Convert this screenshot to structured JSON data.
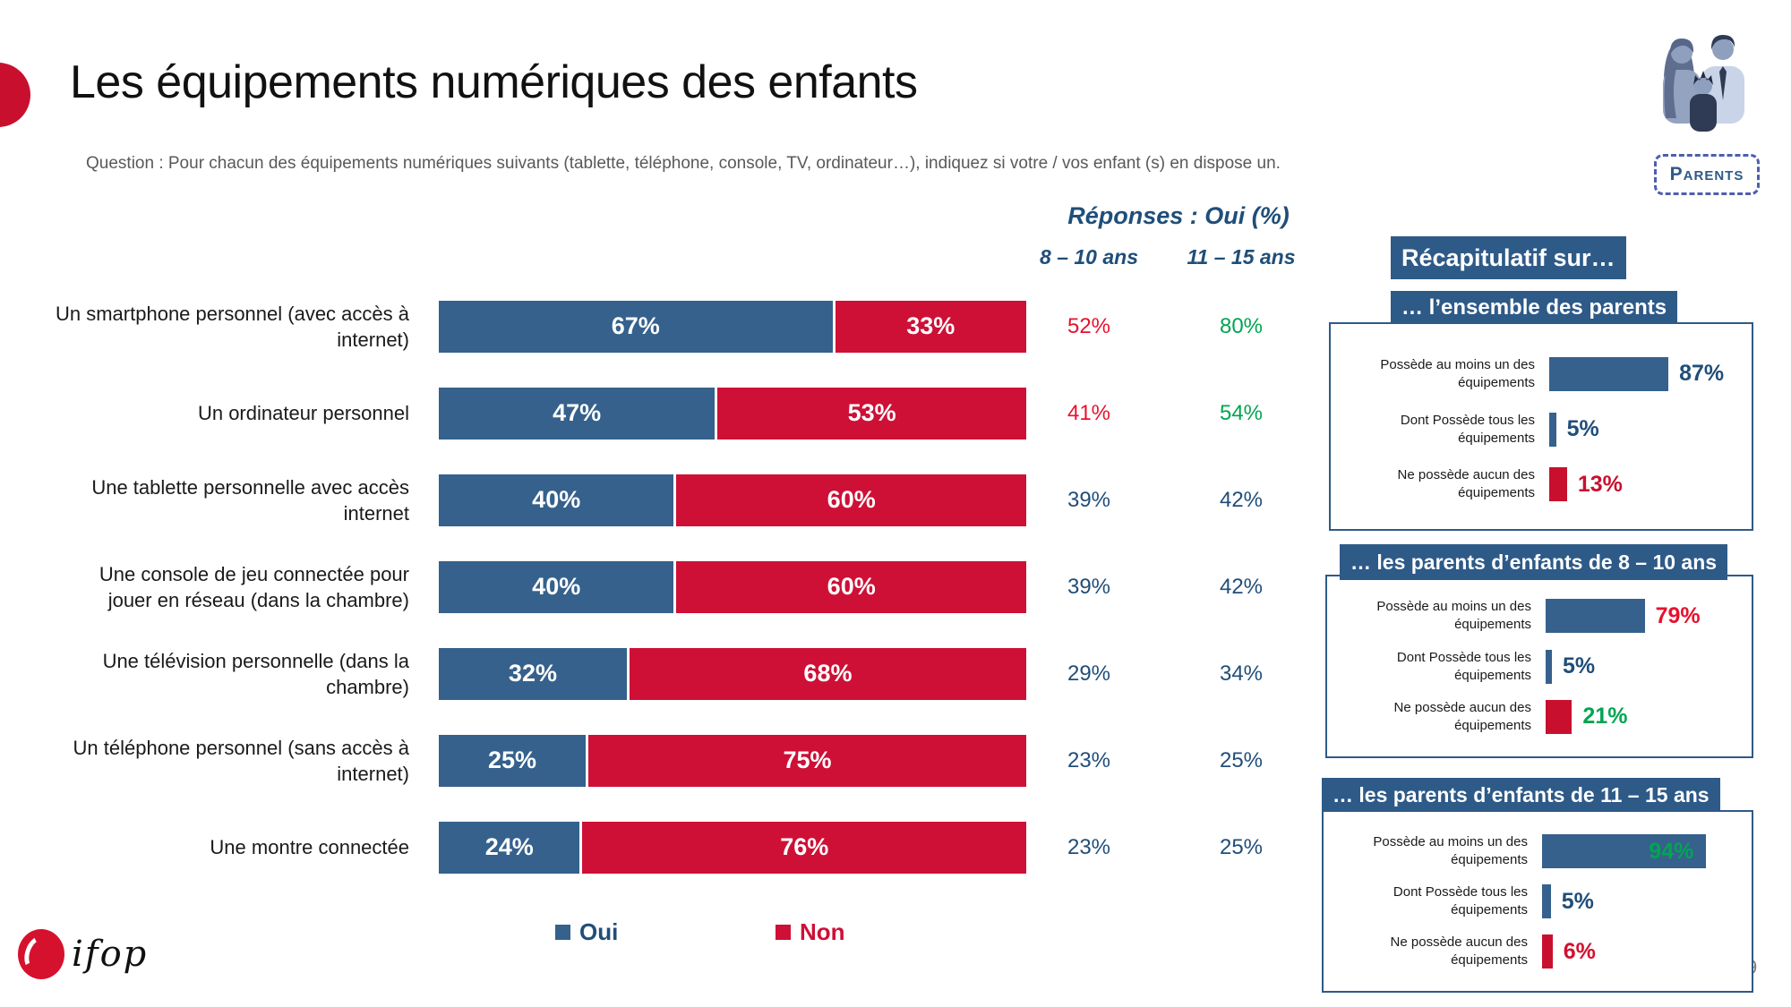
{
  "slide": {
    "title": "Les équipements numériques des enfants",
    "question": "Question : Pour chacun des équipements numériques suivants (tablette, téléphone, console, TV, ordinateur…), indiquez si votre / vos enfant (s) en dispose un.",
    "audience_badge": "Parents",
    "logo_text": "ifop",
    "page_number": "9"
  },
  "colors": {
    "bar_oui": "#35618C",
    "bar_non": "#CE1036",
    "header_bg": "#2E5A88",
    "text_dark_blue": "#1F4E79",
    "text_red": "#E8112D",
    "text_green": "#00A551",
    "text_crimson": "#C8102E"
  },
  "recap": {
    "title": "Récapitulatif sur…"
  },
  "chart_data": [
    {
      "type": "bar",
      "stacked": true,
      "orientation": "horizontal",
      "value_range": [
        0,
        100
      ],
      "title": "Réponses : Oui (%)",
      "legend": [
        "Oui",
        "Non"
      ],
      "legend_position": "bottom",
      "age_columns": {
        "col1": "8 – 10 ans",
        "col2": "11 – 15 ans"
      },
      "series": [
        {
          "name": "Oui",
          "color": "#35618C"
        },
        {
          "name": "Non",
          "color": "#CE1036"
        }
      ],
      "rows": [
        {
          "label": "Un smartphone personnel (avec accès à internet)",
          "oui": 67,
          "non": 33,
          "oui_label": "67%",
          "non_label": "33%",
          "col_8_10": "52%",
          "col_8_10_color": "#E8112D",
          "col_11_15": "80%",
          "col_11_15_color": "#00A551"
        },
        {
          "label": "Un ordinateur personnel",
          "oui": 47,
          "non": 53,
          "oui_label": "47%",
          "non_label": "53%",
          "col_8_10": "41%",
          "col_8_10_color": "#E8112D",
          "col_11_15": "54%",
          "col_11_15_color": "#00A551"
        },
        {
          "label": "Une tablette personnelle avec accès internet",
          "oui": 40,
          "non": 60,
          "oui_label": "40%",
          "non_label": "60%",
          "col_8_10": "39%",
          "col_8_10_color": "#1F4E79",
          "col_11_15": "42%",
          "col_11_15_color": "#1F4E79"
        },
        {
          "label": "Une console de jeu connectée pour jouer en réseau (dans la chambre)",
          "oui": 40,
          "non": 60,
          "oui_label": "40%",
          "non_label": "60%",
          "col_8_10": "39%",
          "col_8_10_color": "#1F4E79",
          "col_11_15": "42%",
          "col_11_15_color": "#1F4E79"
        },
        {
          "label": "Une télévision personnelle (dans la chambre)",
          "oui": 32,
          "non": 68,
          "oui_label": "32%",
          "non_label": "68%",
          "col_8_10": "29%",
          "col_8_10_color": "#1F4E79",
          "col_11_15": "34%",
          "col_11_15_color": "#1F4E79"
        },
        {
          "label": "Un téléphone personnel (sans accès à internet)",
          "oui": 25,
          "non": 75,
          "oui_label": "25%",
          "non_label": "75%",
          "col_8_10": "23%",
          "col_8_10_color": "#1F4E79",
          "col_11_15": "25%",
          "col_11_15_color": "#1F4E79"
        },
        {
          "label": "Une montre connectée",
          "oui": 24,
          "non": 76,
          "oui_label": "24%",
          "non_label": "76%",
          "col_8_10": "23%",
          "col_8_10_color": "#1F4E79",
          "col_11_15": "25%",
          "col_11_15_color": "#1F4E79"
        }
      ]
    },
    {
      "type": "bar",
      "orientation": "horizontal",
      "value_range": [
        0,
        100
      ],
      "title": "… l’ensemble des parents",
      "rows": [
        {
          "label": "Possède au moins un des équipements",
          "value": 87,
          "value_label": "87%",
          "value_color": "#1F4E79",
          "bar_color": "#35618C"
        },
        {
          "label": "Dont Possède tous les équipements",
          "value": 5,
          "value_label": "5%",
          "value_color": "#1F4E79",
          "bar_color": "#35618C"
        },
        {
          "label": "Ne possède aucun des équipements",
          "value": 13,
          "value_label": "13%",
          "value_color": "#C8102E",
          "bar_color": "#C8102E"
        }
      ]
    },
    {
      "type": "bar",
      "orientation": "horizontal",
      "value_range": [
        0,
        100
      ],
      "title": "… les parents d’enfants de 8 – 10 ans",
      "rows": [
        {
          "label": "Possède au moins un des équipements",
          "value": 79,
          "value_label": "79%",
          "value_color": "#E8112D",
          "bar_color": "#35618C"
        },
        {
          "label": "Dont Possède tous les équipements",
          "value": 5,
          "value_label": "5%",
          "value_color": "#1F4E79",
          "bar_color": "#35618C"
        },
        {
          "label": "Ne possède aucun des équipements",
          "value": 21,
          "value_label": "21%",
          "value_color": "#00A551",
          "bar_color": "#C8102E"
        }
      ]
    },
    {
      "type": "bar",
      "orientation": "horizontal",
      "value_range": [
        0,
        100
      ],
      "title": "… les parents d’enfants de 11 – 15 ans",
      "rows": [
        {
          "label": "Possède au moins un des équipements",
          "value": 94,
          "value_label": "94%",
          "value_color": "#00A551",
          "bar_color": "#35618C"
        },
        {
          "label": "Dont Possède tous les équipements",
          "value": 5,
          "value_label": "5%",
          "value_color": "#1F4E79",
          "bar_color": "#35618C"
        },
        {
          "label": "Ne possède aucun des équipements",
          "value": 6,
          "value_label": "6%",
          "value_color": "#D50F2F",
          "bar_color": "#C8102E"
        }
      ]
    }
  ]
}
